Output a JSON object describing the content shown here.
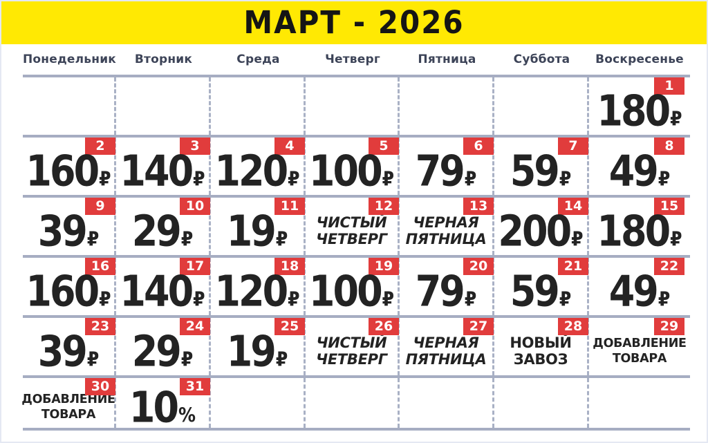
{
  "colors": {
    "banner_yellow": "#ffe903",
    "badge_red": "#e13c3c",
    "weekday_header_text": "#3d4458",
    "grid_line": "#a6adc2",
    "grid_dash": "#a9b1c5",
    "price_text": "#232323"
  },
  "title": "МАРТ - 2026",
  "weekday_headers": [
    "Понедельник",
    "Вторник",
    "Среда",
    "Четверг",
    "Пятница",
    "Суббота",
    "Воскресенье"
  ],
  "currency_symbol": "₽",
  "weeks": [
    [
      null,
      null,
      null,
      null,
      null,
      null,
      {
        "day": "1",
        "type": "price",
        "value": "180",
        "unit": "₽"
      }
    ],
    [
      {
        "day": "2",
        "type": "price",
        "value": "160",
        "unit": "₽"
      },
      {
        "day": "3",
        "type": "price",
        "value": "140",
        "unit": "₽"
      },
      {
        "day": "4",
        "type": "price",
        "value": "120",
        "unit": "₽"
      },
      {
        "day": "5",
        "type": "price",
        "value": "100",
        "unit": "₽"
      },
      {
        "day": "6",
        "type": "price",
        "value": "79",
        "unit": "₽"
      },
      {
        "day": "7",
        "type": "price",
        "value": "59",
        "unit": "₽"
      },
      {
        "day": "8",
        "type": "price",
        "value": "49",
        "unit": "₽"
      }
    ],
    [
      {
        "day": "9",
        "type": "price",
        "value": "39",
        "unit": "₽"
      },
      {
        "day": "10",
        "type": "price",
        "value": "29",
        "unit": "₽"
      },
      {
        "day": "11",
        "type": "price",
        "value": "19",
        "unit": "₽"
      },
      {
        "day": "12",
        "type": "event",
        "text": "ЧИСТЫЙ\nЧЕТВЕРГ",
        "style": "italic"
      },
      {
        "day": "13",
        "type": "event",
        "text": "ЧЕРНАЯ\nПЯТНИЦА",
        "style": "italic"
      },
      {
        "day": "14",
        "type": "price",
        "value": "200",
        "unit": "₽"
      },
      {
        "day": "15",
        "type": "price",
        "value": "180",
        "unit": "₽"
      }
    ],
    [
      {
        "day": "16",
        "type": "price",
        "value": "160",
        "unit": "₽"
      },
      {
        "day": "17",
        "type": "price",
        "value": "140",
        "unit": "₽"
      },
      {
        "day": "18",
        "type": "price",
        "value": "120",
        "unit": "₽"
      },
      {
        "day": "19",
        "type": "price",
        "value": "100",
        "unit": "₽"
      },
      {
        "day": "20",
        "type": "price",
        "value": "79",
        "unit": "₽"
      },
      {
        "day": "21",
        "type": "price",
        "value": "59",
        "unit": "₽"
      },
      {
        "day": "22",
        "type": "price",
        "value": "49",
        "unit": "₽"
      }
    ],
    [
      {
        "day": "23",
        "type": "price",
        "value": "39",
        "unit": "₽"
      },
      {
        "day": "24",
        "type": "price",
        "value": "29",
        "unit": "₽"
      },
      {
        "day": "25",
        "type": "price",
        "value": "19",
        "unit": "₽"
      },
      {
        "day": "26",
        "type": "event",
        "text": "ЧИСТЫЙ\nЧЕТВЕРГ",
        "style": "italic"
      },
      {
        "day": "27",
        "type": "event",
        "text": "ЧЕРНАЯ\nПЯТНИЦА",
        "style": "italic"
      },
      {
        "day": "28",
        "type": "event",
        "text": "НОВЫЙ\nЗАВОЗ",
        "style": "normal"
      },
      {
        "day": "29",
        "type": "event",
        "text": "ДОБАВЛЕНИЕ\nТОВАРА",
        "style": "normal",
        "size": "small"
      }
    ],
    [
      {
        "day": "30",
        "type": "event",
        "text": "ДОБАВЛЕНИЕ\nТОВАРА",
        "style": "normal",
        "size": "small"
      },
      {
        "day": "31",
        "type": "price",
        "value": "10",
        "unit": "%"
      },
      null,
      null,
      null,
      null,
      null
    ]
  ]
}
